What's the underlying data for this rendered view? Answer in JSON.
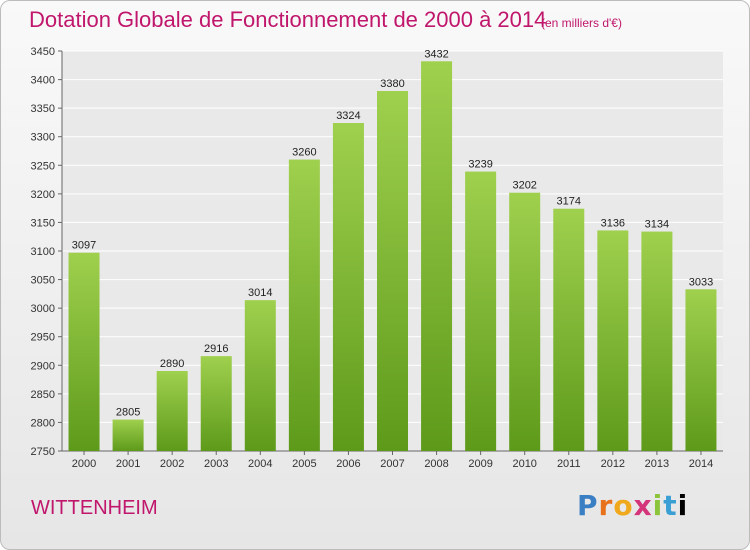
{
  "header": {
    "title": "Dotation Globale de Fonctionnement de 2000 à 2014",
    "subtitle": "(en milliers d'€)"
  },
  "footer": {
    "town": "WITTENHEIM",
    "logo": "Proxiti"
  },
  "colors": {
    "bar_light": "#9fd04e",
    "bar_dark": "#5e9a1a",
    "title": "#c0166c",
    "grid": "#ffffff"
  },
  "chart_data": {
    "type": "bar",
    "title": "Dotation Globale de Fonctionnement de 2000 à 2014",
    "subtitle": "(en milliers d'€)",
    "xlabel": "",
    "ylabel": "",
    "categories": [
      "2000",
      "2001",
      "2002",
      "2003",
      "2004",
      "2005",
      "2006",
      "2007",
      "2008",
      "2009",
      "2010",
      "2011",
      "2012",
      "2013",
      "2014"
    ],
    "values": [
      3097,
      2805,
      2890,
      2916,
      3014,
      3260,
      3324,
      3380,
      3432,
      3239,
      3202,
      3174,
      3136,
      3134,
      3033
    ],
    "ylim": [
      2750,
      3450
    ],
    "yticks": [
      2750,
      2800,
      2850,
      2900,
      2950,
      3000,
      3050,
      3100,
      3150,
      3200,
      3250,
      3300,
      3350,
      3400,
      3450
    ],
    "grid": true,
    "legend": "none"
  }
}
